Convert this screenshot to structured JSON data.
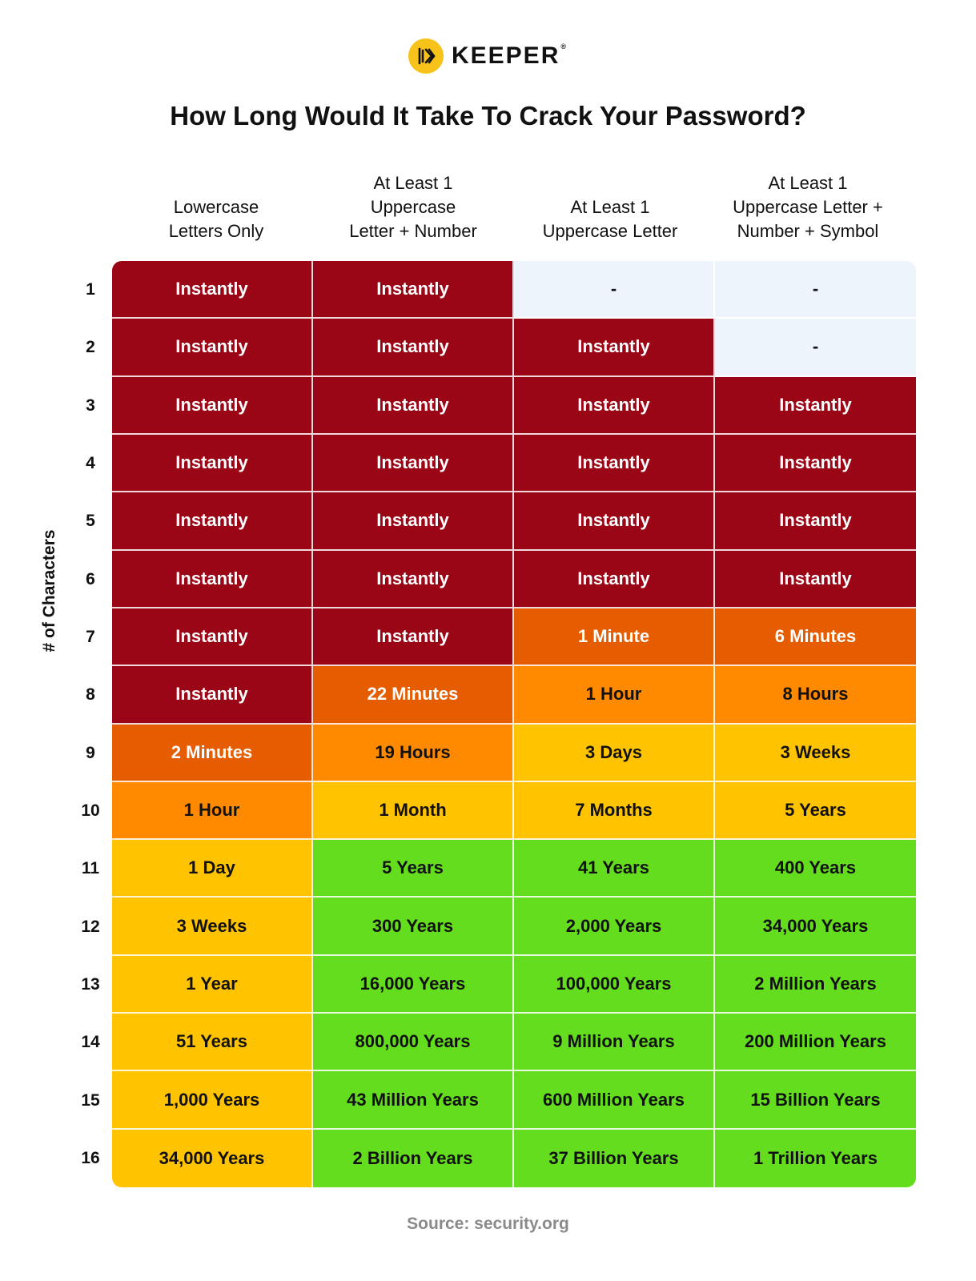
{
  "logo": {
    "text": "KEEPER",
    "mark": "®"
  },
  "colors": {
    "instant": "#9a0616",
    "minutes": "#e65c00",
    "hours": "#ff8a00",
    "days": "#ffc300",
    "years": "#63dd1d",
    "na": "#edf4fc"
  },
  "chart_data": {
    "type": "table",
    "title": "How Long Would It Take To Crack Your Password?",
    "ylabel": "# of Characters",
    "source": "Source: security.org",
    "columns": [
      "Lowercase\nLetters Only",
      "At Least 1\nUppercase\nLetter  +  Number",
      "At Least 1\nUppercase Letter",
      "At Least 1\nUppercase Letter +\nNumber + Symbol"
    ],
    "rows": [
      {
        "label": "1",
        "cells": [
          "Instantly",
          "Instantly",
          "-",
          "-"
        ],
        "levels": [
          "instant",
          "instant",
          "na",
          "na"
        ]
      },
      {
        "label": "2",
        "cells": [
          "Instantly",
          "Instantly",
          "Instantly",
          "-"
        ],
        "levels": [
          "instant",
          "instant",
          "instant",
          "na"
        ]
      },
      {
        "label": "3",
        "cells": [
          "Instantly",
          "Instantly",
          "Instantly",
          "Instantly"
        ],
        "levels": [
          "instant",
          "instant",
          "instant",
          "instant"
        ]
      },
      {
        "label": "4",
        "cells": [
          "Instantly",
          "Instantly",
          "Instantly",
          "Instantly"
        ],
        "levels": [
          "instant",
          "instant",
          "instant",
          "instant"
        ]
      },
      {
        "label": "5",
        "cells": [
          "Instantly",
          "Instantly",
          "Instantly",
          "Instantly"
        ],
        "levels": [
          "instant",
          "instant",
          "instant",
          "instant"
        ]
      },
      {
        "label": "6",
        "cells": [
          "Instantly",
          "Instantly",
          "Instantly",
          "Instantly"
        ],
        "levels": [
          "instant",
          "instant",
          "instant",
          "instant"
        ]
      },
      {
        "label": "7",
        "cells": [
          "Instantly",
          "Instantly",
          "1 Minute",
          "6 Minutes"
        ],
        "levels": [
          "instant",
          "instant",
          "minutes",
          "minutes"
        ]
      },
      {
        "label": "8",
        "cells": [
          "Instantly",
          "22 Minutes",
          "1 Hour",
          "8 Hours"
        ],
        "levels": [
          "instant",
          "minutes",
          "hours",
          "hours"
        ]
      },
      {
        "label": "9",
        "cells": [
          "2 Minutes",
          "19 Hours",
          "3 Days",
          "3 Weeks"
        ],
        "levels": [
          "minutes",
          "hours",
          "days",
          "days"
        ]
      },
      {
        "label": "10",
        "cells": [
          "1 Hour",
          "1 Month",
          "7 Months",
          "5 Years"
        ],
        "levels": [
          "hours",
          "days",
          "days",
          "days"
        ]
      },
      {
        "label": "11",
        "cells": [
          "1 Day",
          "5 Years",
          "41 Years",
          "400 Years"
        ],
        "levels": [
          "days",
          "years",
          "years",
          "years"
        ]
      },
      {
        "label": "12",
        "cells": [
          "3 Weeks",
          "300 Years",
          "2,000 Years",
          "34,000 Years"
        ],
        "levels": [
          "days",
          "years",
          "years",
          "years"
        ]
      },
      {
        "label": "13",
        "cells": [
          "1 Year",
          "16,000 Years",
          "100,000 Years",
          "2 Million Years"
        ],
        "levels": [
          "days",
          "years",
          "years",
          "years"
        ]
      },
      {
        "label": "14",
        "cells": [
          "51 Years",
          "800,000 Years",
          "9 Million Years",
          "200 Million Years"
        ],
        "levels": [
          "days",
          "years",
          "years",
          "years"
        ]
      },
      {
        "label": "15",
        "cells": [
          "1,000 Years",
          "43 Million Years",
          "600 Million Years",
          "15 Billion Years"
        ],
        "levels": [
          "days",
          "years",
          "years",
          "years"
        ]
      },
      {
        "label": "16",
        "cells": [
          "34,000 Years",
          "2 Billion Years",
          "37 Billion Years",
          "1 Trillion Years"
        ],
        "levels": [
          "days",
          "years",
          "years",
          "years"
        ]
      }
    ]
  }
}
